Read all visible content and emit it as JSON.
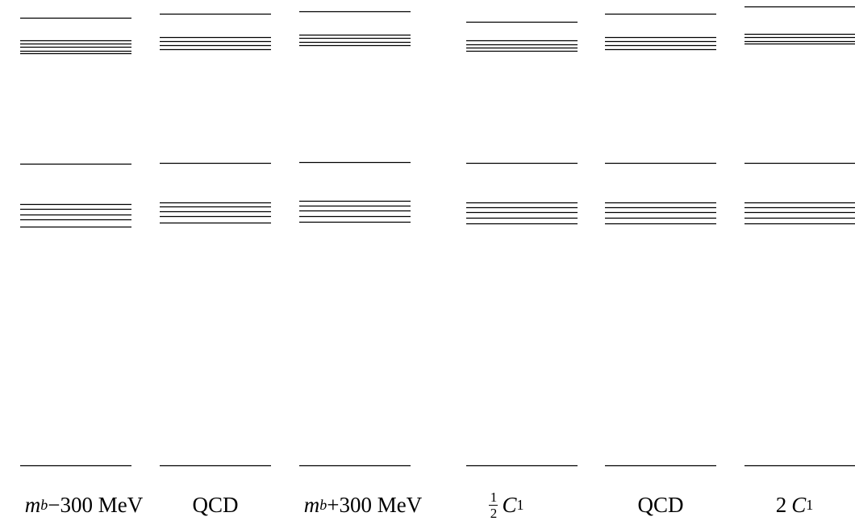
{
  "columns": [
    {
      "label_prefix": "m",
      "label_sub": "b",
      "label_suffix": "−300 MeV",
      "style": "mass"
    },
    {
      "label": "QCD",
      "style": "plain"
    },
    {
      "label_prefix": "m",
      "label_sub": "b",
      "label_suffix": "+300 MeV",
      "style": "mass"
    },
    {
      "frac_num": "1",
      "frac_den": "2",
      "label_prefix": "C",
      "label_sub": "1",
      "style": "frac"
    },
    {
      "label": "QCD",
      "style": "plain"
    },
    {
      "coef": "2",
      "label_prefix": "C",
      "label_sub": "1",
      "style": "coef"
    }
  ],
  "level_colors": {
    "line": "#000000"
  }
}
